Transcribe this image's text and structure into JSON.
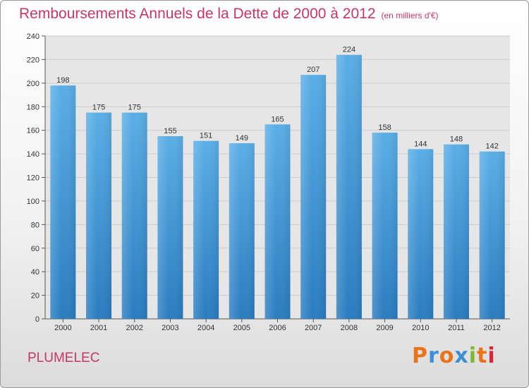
{
  "header": {
    "title": "Remboursements Annuels de la Dette de 2000 à 2012",
    "subtitle": "(en milliers d'€)"
  },
  "footer": {
    "town": "PLUMELEC",
    "logo": "Proxiti",
    "logo_colors": [
      "#e8731a",
      "#3a8fd6",
      "#e8731a",
      "#3a8fd6",
      "#7cb92b",
      "#e8731a",
      "#d8263c"
    ]
  },
  "chart_data": {
    "type": "bar",
    "title": "Remboursements Annuels de la Dette de 2000 à 2012",
    "subtitle": "(en milliers d'€)",
    "categories": [
      "2000",
      "2001",
      "2002",
      "2003",
      "2004",
      "2005",
      "2006",
      "2007",
      "2008",
      "2009",
      "2010",
      "2011",
      "2012"
    ],
    "values": [
      198,
      175,
      175,
      155,
      151,
      149,
      165,
      207,
      224,
      158,
      144,
      148,
      142
    ],
    "ylim": [
      0,
      240
    ],
    "yticks": [
      0,
      20,
      40,
      60,
      80,
      100,
      120,
      140,
      160,
      180,
      200,
      220,
      240
    ],
    "grid": true,
    "colors": {
      "bar_top": "#5aaee6",
      "bar_bottom": "#2a7cc0",
      "plot_bg": "#e6e6e6",
      "grid": "#cccccc",
      "title": "#c8356a"
    }
  }
}
